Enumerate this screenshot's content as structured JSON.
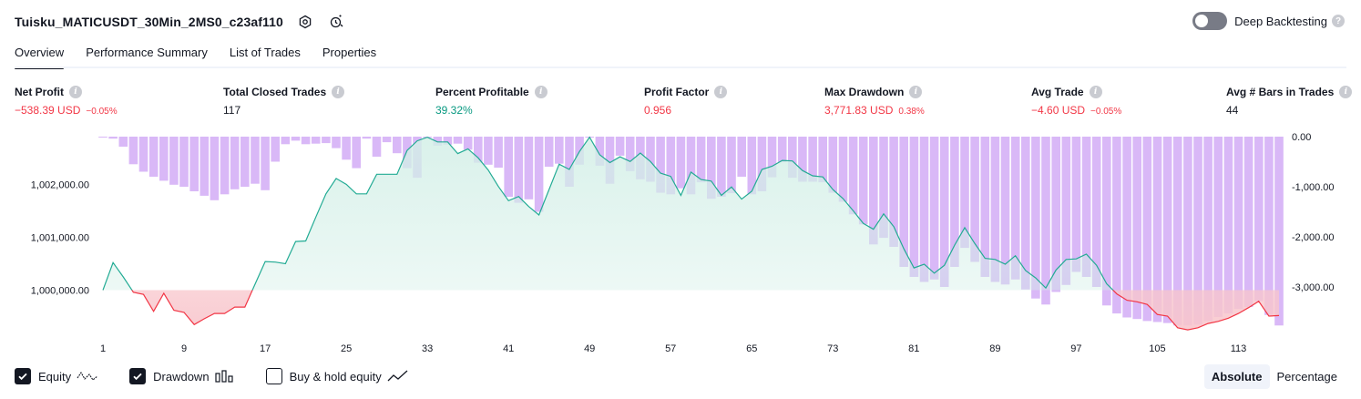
{
  "header": {
    "title": "Tuisku_MATICUSDT_30Min_2MS0_c23af110",
    "deep_backtesting_label": "Deep Backtesting",
    "deep_backtesting_on": false
  },
  "tabs": [
    "Overview",
    "Performance Summary",
    "List of Trades",
    "Properties"
  ],
  "metrics": [
    {
      "label": "Net Profit",
      "value": "−538.39 USD",
      "pct": "−0.05%",
      "tone": "neg"
    },
    {
      "label": "Total Closed Trades",
      "value": "117",
      "pct": "",
      "tone": "neu"
    },
    {
      "label": "Percent Profitable",
      "value": "39.32%",
      "pct": "",
      "tone": "pos"
    },
    {
      "label": "Profit Factor",
      "value": "0.956",
      "pct": "",
      "tone": "neg"
    },
    {
      "label": "Max Drawdown",
      "value": "3,771.83 USD",
      "pct": "0.38%",
      "tone": "neg"
    },
    {
      "label": "Avg Trade",
      "value": "−4.60 USD",
      "pct": "−0.05%",
      "tone": "neg"
    },
    {
      "label": "Avg # Bars in Trades",
      "value": "44",
      "pct": "",
      "tone": "neu"
    }
  ],
  "legend": {
    "equity": {
      "label": "Equity",
      "checked": true
    },
    "drawdown": {
      "label": "Drawdown",
      "checked": true
    },
    "buy_hold": {
      "label": "Buy & hold equity",
      "checked": false
    }
  },
  "mode": {
    "absolute": "Absolute",
    "percentage": "Percentage",
    "selected": "absolute"
  },
  "colors": {
    "equity_line_pos": "#22ab94",
    "equity_fill_pos": "#d3efe7",
    "equity_line_neg": "#f23645",
    "equity_fill_neg": "#f8c6cc",
    "drawdown_bar": "#d9b8f7"
  },
  "chart_data": {
    "type": "area",
    "left_axis": {
      "ticks": [
        "1,002,000.00",
        "1,001,000.00",
        "1,000,000.00"
      ],
      "tick_values": [
        1002000,
        1001000,
        1000000
      ],
      "ylim": [
        999200,
        1002900
      ]
    },
    "right_axis": {
      "ticks": [
        "0.00",
        "-1,000.00",
        "-2,000.00",
        "-3,000.00"
      ],
      "tick_values": [
        0,
        -1000,
        -2000,
        -3000
      ],
      "ylim": [
        -4000,
        0
      ]
    },
    "x_ticks": [
      "1",
      "9",
      "17",
      "25",
      "33",
      "41",
      "49",
      "57",
      "65",
      "73",
      "81",
      "89",
      "97",
      "105",
      "113"
    ],
    "x_tick_values": [
      1,
      9,
      17,
      25,
      33,
      41,
      49,
      57,
      65,
      73,
      81,
      89,
      97,
      105,
      113
    ],
    "baseline": 1000000,
    "series": [
      {
        "name": "Equity",
        "x": [
          1,
          2,
          3,
          4,
          5,
          6,
          7,
          8,
          9,
          10,
          11,
          12,
          13,
          14,
          15,
          16,
          17,
          18,
          19,
          20,
          21,
          22,
          23,
          24,
          25,
          26,
          27,
          28,
          29,
          30,
          31,
          32,
          33,
          34,
          35,
          36,
          37,
          38,
          39,
          40,
          41,
          42,
          43,
          44,
          45,
          46,
          47,
          48,
          49,
          50,
          51,
          52,
          53,
          54,
          55,
          56,
          57,
          58,
          59,
          60,
          61,
          62,
          63,
          64,
          65,
          66,
          67,
          68,
          69,
          70,
          71,
          72,
          73,
          74,
          75,
          76,
          77,
          78,
          79,
          80,
          81,
          82,
          83,
          84,
          85,
          86,
          87,
          88,
          89,
          90,
          91,
          92,
          93,
          94,
          95,
          96,
          97,
          98,
          99,
          100,
          101,
          102,
          103,
          104,
          105,
          106,
          107,
          108,
          109,
          110,
          111,
          112,
          113,
          114,
          115,
          116,
          117
        ],
        "values": [
          1000000,
          1000520,
          1000250,
          999960,
          999920,
          999600,
          999940,
          999620,
          999580,
          999350,
          999460,
          999560,
          999560,
          999680,
          999680,
          1000110,
          1000540,
          1000530,
          1000500,
          1000920,
          1000930,
          1001380,
          1001820,
          1002110,
          1002000,
          1001820,
          1001820,
          1002190,
          1002190,
          1002190,
          1002640,
          1002820,
          1002890,
          1002800,
          1002800,
          1002580,
          1002670,
          1002500,
          1002270,
          1001960,
          1001690,
          1001770,
          1001580,
          1001420,
          1001900,
          1002380,
          1002280,
          1002620,
          1002890,
          1002560,
          1002410,
          1002520,
          1002430,
          1002590,
          1002430,
          1002210,
          1002150,
          1001790,
          1002230,
          1002090,
          1002060,
          1001790,
          1001950,
          1001720,
          1001870,
          1002280,
          1002340,
          1002450,
          1002440,
          1002260,
          1002160,
          1002140,
          1001900,
          1001730,
          1001500,
          1001260,
          1001150,
          1001440,
          1001200,
          1000780,
          1000420,
          1000490,
          1000320,
          1000470,
          1000850,
          1001180,
          1000880,
          1000600,
          1000580,
          1000490,
          1000650,
          1000370,
          1000230,
          1000040,
          1000380,
          1000580,
          1000590,
          1000680,
          1000470,
          1000120,
          999930,
          999810,
          999780,
          999730,
          999540,
          999510,
          999290,
          999250,
          999290,
          999370,
          999410,
          999470,
          999560,
          999670,
          999790,
          999510,
          999520
        ]
      },
      {
        "name": "Drawdown",
        "x": [
          1,
          2,
          3,
          4,
          5,
          6,
          7,
          8,
          9,
          10,
          11,
          12,
          13,
          14,
          15,
          16,
          17,
          18,
          19,
          20,
          21,
          22,
          23,
          24,
          25,
          26,
          27,
          28,
          29,
          30,
          31,
          32,
          33,
          34,
          35,
          36,
          37,
          38,
          39,
          40,
          41,
          42,
          43,
          44,
          45,
          46,
          47,
          48,
          49,
          50,
          51,
          52,
          53,
          54,
          55,
          56,
          57,
          58,
          59,
          60,
          61,
          62,
          63,
          64,
          65,
          66,
          67,
          68,
          69,
          70,
          71,
          72,
          73,
          74,
          75,
          76,
          77,
          78,
          79,
          80,
          81,
          82,
          83,
          84,
          85,
          86,
          87,
          88,
          89,
          90,
          91,
          92,
          93,
          94,
          95,
          96,
          97,
          98,
          99,
          100,
          101,
          102,
          103,
          104,
          105,
          106,
          107,
          108,
          109,
          110,
          111,
          112,
          113,
          114,
          115,
          116,
          117
        ],
        "values": [
          -10,
          -40,
          -200,
          -550,
          -700,
          -800,
          -880,
          -960,
          -1000,
          -1090,
          -1180,
          -1270,
          -1150,
          -1050,
          -1000,
          -940,
          -1070,
          -500,
          -150,
          -80,
          -150,
          -140,
          -130,
          -230,
          -460,
          -630,
          -40,
          -400,
          -110,
          -330,
          -630,
          -820,
          -20,
          -180,
          -160,
          -140,
          -260,
          -520,
          -560,
          -620,
          -1200,
          -1320,
          -1250,
          -1500,
          -600,
          -540,
          -1000,
          -560,
          -20,
          -580,
          -940,
          -380,
          -690,
          -850,
          -900,
          -1120,
          -1150,
          -1030,
          -1150,
          -910,
          -1240,
          -1200,
          -1130,
          -800,
          -1150,
          -1090,
          -810,
          -510,
          -820,
          -900,
          -900,
          -910,
          -1120,
          -1300,
          -1550,
          -1750,
          -2150,
          -2020,
          -2200,
          -2600,
          -2800,
          -2900,
          -2850,
          -3000,
          -2600,
          -2220,
          -2500,
          -2800,
          -2900,
          -2950,
          -2850,
          -3050,
          -3230,
          -3350,
          -3100,
          -2960,
          -2700,
          -2800,
          -3000,
          -3370,
          -3530,
          -3610,
          -3640,
          -3680,
          -3700,
          -3720,
          -3770,
          -3770,
          -3750,
          -3680,
          -3600,
          -3530,
          -3440,
          -3400,
          -3280,
          -3560,
          -3770
        ]
      }
    ]
  }
}
